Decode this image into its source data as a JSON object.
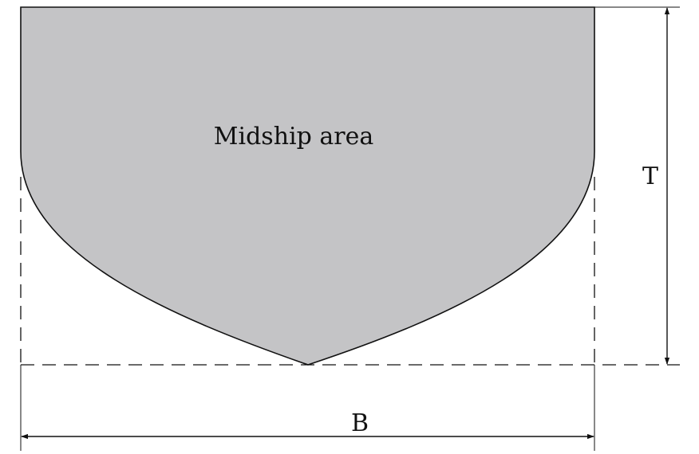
{
  "labels": {
    "area": "Midship area",
    "draught": "T",
    "breadth": "B"
  },
  "colors": {
    "fill": "#c4c4c6",
    "stroke": "#111111"
  }
}
